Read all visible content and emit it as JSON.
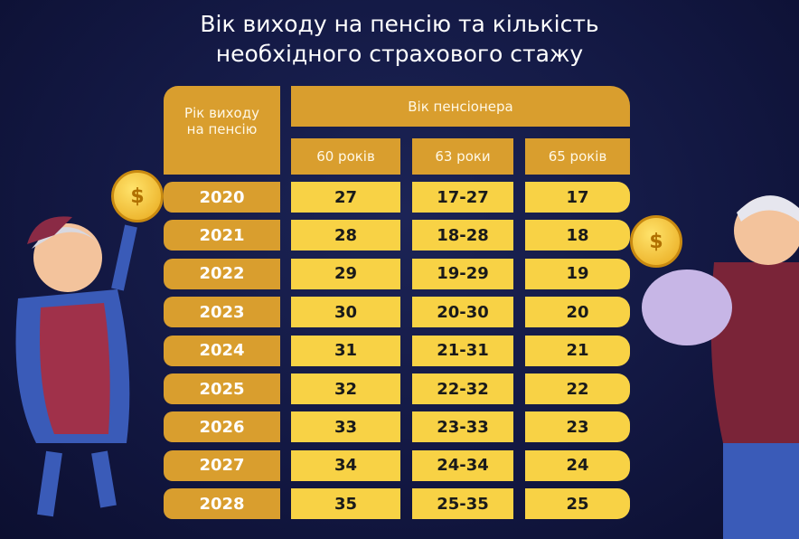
{
  "title": {
    "line1": "Вік виходу на пенсію та кількість",
    "line2": "необхідного страхового стажу"
  },
  "table": {
    "year_header": "Рік виходу на пенсію",
    "group_header": "Вік пенсіонера",
    "columns": [
      "60 років",
      "63 роки",
      "65 років"
    ],
    "rows": [
      {
        "year": "2020",
        "values": [
          "27",
          "17-27",
          "17"
        ]
      },
      {
        "year": "2021",
        "values": [
          "28",
          "18-28",
          "18"
        ]
      },
      {
        "year": "2022",
        "values": [
          "29",
          "19-29",
          "19"
        ]
      },
      {
        "year": "2023",
        "values": [
          "30",
          "20-30",
          "20"
        ]
      },
      {
        "year": "2024",
        "values": [
          "31",
          "21-31",
          "21"
        ]
      },
      {
        "year": "2025",
        "values": [
          "32",
          "22-32",
          "22"
        ]
      },
      {
        "year": "2026",
        "values": [
          "33",
          "23-33",
          "23"
        ]
      },
      {
        "year": "2027",
        "values": [
          "34",
          "24-34",
          "24"
        ]
      },
      {
        "year": "2028",
        "values": [
          "35",
          "25-35",
          "25"
        ]
      }
    ]
  },
  "colors": {
    "background": "#141a45",
    "header": "#d99e2e",
    "cell": "#f8d245"
  },
  "icons": {
    "coin": "dollar-coin-icon"
  }
}
